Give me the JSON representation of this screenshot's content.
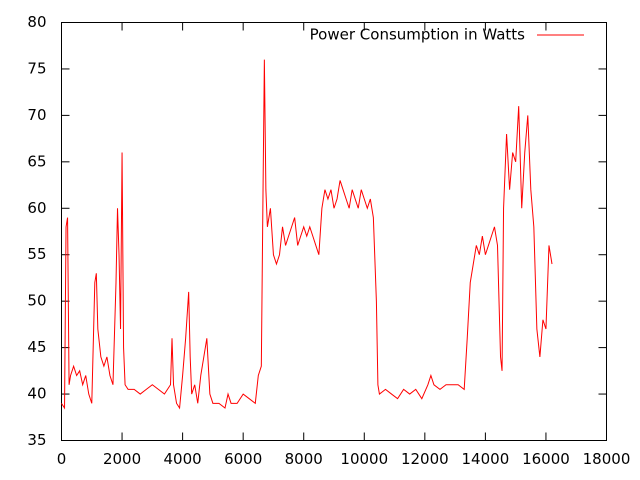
{
  "chart_data": {
    "type": "line",
    "legend": "upper right",
    "series": [
      {
        "name": "Power Consumption in Watts",
        "color": "#ff0000",
        "x": [
          0,
          100,
          150,
          200,
          250,
          300,
          400,
          500,
          600,
          700,
          800,
          900,
          1000,
          1100,
          1150,
          1200,
          1300,
          1400,
          1500,
          1600,
          1700,
          1800,
          1850,
          1900,
          1950,
          2000,
          2050,
          2100,
          2200,
          2400,
          2600,
          2800,
          3000,
          3200,
          3400,
          3600,
          3650,
          3700,
          3800,
          3900,
          4000,
          4100,
          4200,
          4250,
          4300,
          4400,
          4500,
          4600,
          4700,
          4800,
          4900,
          5000,
          5200,
          5400,
          5500,
          5600,
          5800,
          6000,
          6200,
          6400,
          6500,
          6600,
          6650,
          6700,
          6750,
          6800,
          6900,
          7000,
          7100,
          7200,
          7300,
          7400,
          7500,
          7600,
          7700,
          7800,
          7900,
          8000,
          8100,
          8200,
          8300,
          8400,
          8500,
          8600,
          8700,
          8800,
          8900,
          9000,
          9100,
          9200,
          9300,
          9400,
          9500,
          9600,
          9700,
          9800,
          9900,
          10000,
          10100,
          10200,
          10300,
          10400,
          10450,
          10500,
          10700,
          10900,
          11100,
          11300,
          11500,
          11700,
          11900,
          12100,
          12200,
          12300,
          12500,
          12700,
          12900,
          13100,
          13300,
          13400,
          13500,
          13600,
          13700,
          13800,
          13900,
          14000,
          14100,
          14200,
          14300,
          14400,
          14500,
          14550,
          14600,
          14700,
          14800,
          14900,
          15000,
          15100,
          15200,
          15300,
          15400,
          15500,
          15600,
          15700,
          15800,
          15900,
          16000,
          16100,
          16200
        ],
        "values": [
          39,
          38.5,
          58,
          59,
          41,
          42,
          43,
          42,
          42.5,
          41,
          42,
          40,
          39,
          52,
          53,
          47,
          44,
          43,
          44,
          42,
          41,
          52,
          60,
          55,
          47,
          66,
          45,
          41,
          40.5,
          40.5,
          40,
          40.5,
          41,
          40.5,
          40,
          41,
          46,
          41,
          39,
          38.5,
          42,
          46,
          51,
          44,
          40,
          41,
          39,
          42,
          44,
          46,
          40,
          39,
          39,
          38.5,
          40,
          39,
          39,
          40,
          39.5,
          39,
          42,
          43,
          60,
          76,
          62,
          58,
          60,
          55,
          54,
          55,
          58,
          56,
          57,
          58,
          59,
          56,
          57,
          58,
          57,
          58,
          57,
          56,
          55,
          60,
          62,
          61,
          62,
          60,
          61,
          63,
          62,
          61,
          60,
          62,
          61,
          60,
          62,
          61,
          60,
          61,
          59,
          50,
          41,
          40,
          40.5,
          40,
          39.5,
          40.5,
          40,
          40.5,
          39.5,
          41,
          42,
          41,
          40.5,
          41,
          41,
          41,
          40.5,
          46,
          52,
          54,
          56,
          55,
          57,
          55,
          56,
          57,
          58,
          56,
          44,
          42.5,
          60,
          68,
          62,
          66,
          65,
          71,
          60,
          66,
          70,
          62,
          58,
          47,
          44,
          48,
          47,
          56,
          54
        ]
      }
    ],
    "xlim": [
      0,
      18000
    ],
    "xticks": [
      0,
      2000,
      4000,
      6000,
      8000,
      10000,
      12000,
      14000,
      16000,
      18000
    ],
    "ylim": [
      35,
      80
    ],
    "yticks": [
      35,
      40,
      45,
      50,
      55,
      60,
      65,
      70,
      75,
      80
    ]
  }
}
